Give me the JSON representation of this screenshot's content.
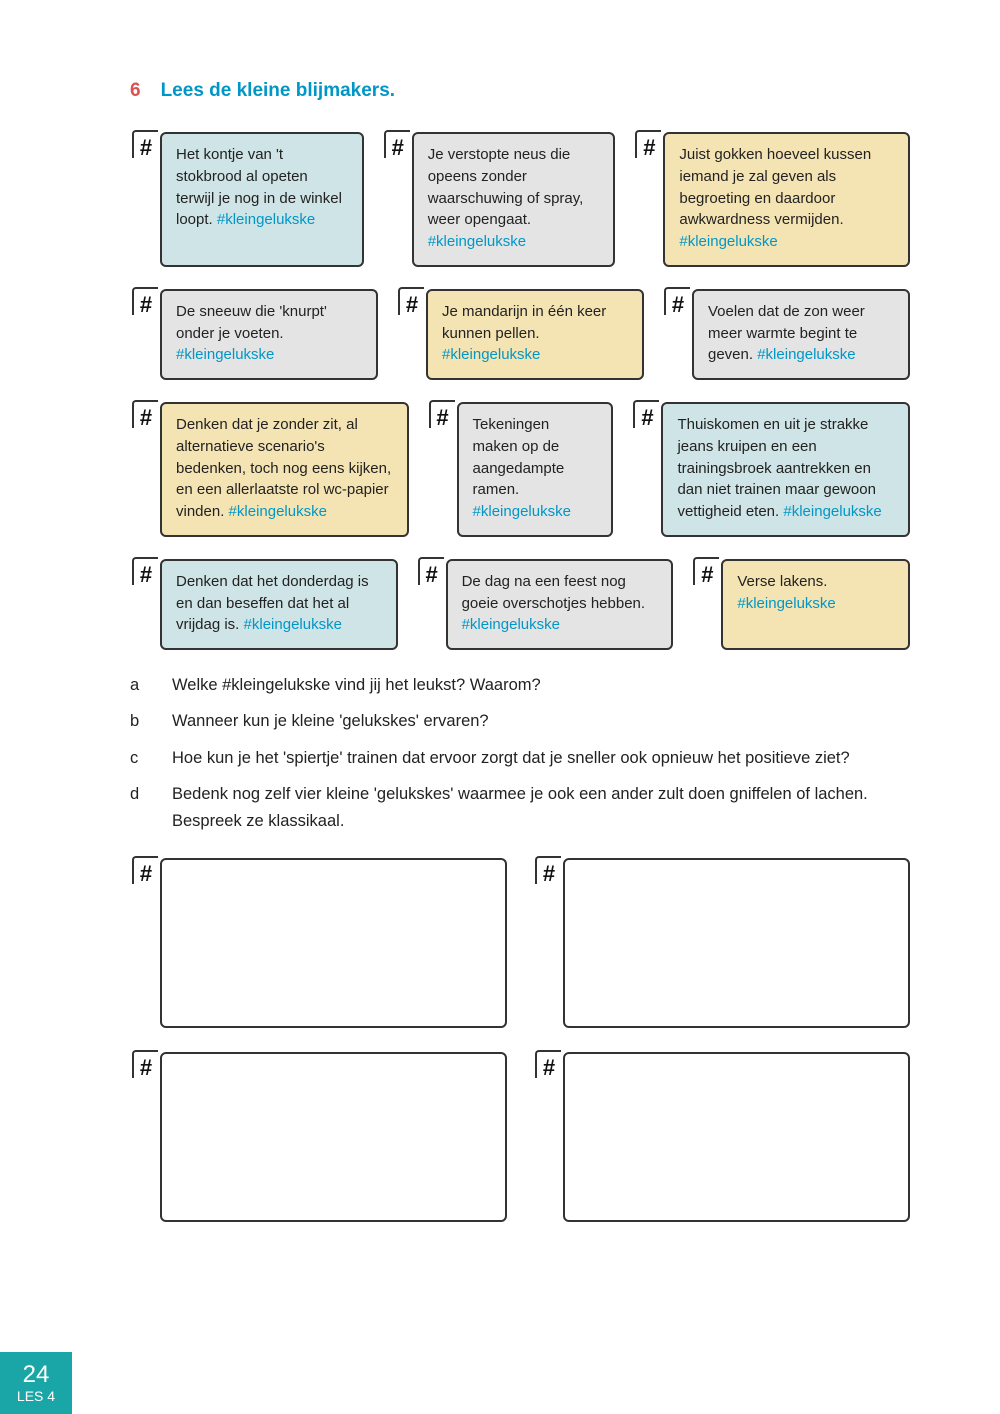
{
  "heading": {
    "num": "6",
    "title": "Lees de kleine blijmakers."
  },
  "hashtag": "#kleingelukske",
  "rows": [
    [
      {
        "text": "Het kontje van 't stokbrood al opeten terwijl je nog in de winkel loopt. ",
        "bg": "bg-blue"
      },
      {
        "text": "Je verstopte neus die opeens zonder waarschuwing of spray, weer opengaat. ",
        "bg": "bg-grey"
      },
      {
        "text": "Juist gokken hoeveel kussen iemand je zal geven als begroeting en daardoor awkwardness vermijden. ",
        "bg": "bg-yellow"
      }
    ],
    [
      {
        "text": "De sneeuw die 'knurpt' onder je voeten. ",
        "bg": "bg-grey"
      },
      {
        "text": "Je mandarijn in één keer kunnen pellen. ",
        "bg": "bg-yellow"
      },
      {
        "text": "Voelen dat de zon weer meer warmte begint te geven. ",
        "bg": "bg-grey"
      }
    ],
    [
      {
        "text": "Denken dat je zonder zit, al alternatieve scenario's bedenken, toch nog eens kijken, en een allerlaatste rol wc-papier vinden. ",
        "bg": "bg-yellow"
      },
      {
        "text": "Tekeningen maken op de aangedampte ramen. ",
        "bg": "bg-grey"
      },
      {
        "text": "Thuiskomen en uit je strakke jeans kruipen en een trainingsbroek aantrekken en dan niet trainen maar gewoon vettigheid eten. ",
        "bg": "bg-blue"
      }
    ],
    [
      {
        "text": "Denken dat het donderdag is en dan beseffen dat het al vrijdag is. ",
        "bg": "bg-blue"
      },
      {
        "text": "De dag na een feest nog goeie overschotjes hebben. ",
        "bg": "bg-grey"
      },
      {
        "text": "Verse lakens. ",
        "bg": "bg-yellow"
      }
    ]
  ],
  "row_flex": [
    [
      1,
      1,
      1.25
    ],
    [
      1,
      1,
      1
    ],
    [
      1.3,
      0.75,
      1.3
    ],
    [
      1.05,
      1,
      0.8
    ]
  ],
  "questions": [
    {
      "lbl": "a",
      "txt": "Welke #kleingelukske vind jij het leukst? Waarom?"
    },
    {
      "lbl": "b",
      "txt": "Wanneer kun je kleine 'gelukskes' ervaren?"
    },
    {
      "lbl": "c",
      "txt": "Hoe kun je het 'spiertje' trainen dat ervoor zorgt dat je sneller ook opnieuw het positieve ziet?"
    },
    {
      "lbl": "d",
      "txt": "Bedenk nog zelf vier kleine 'gelukskes' waarmee je ook een ander zult doen gniffelen of lachen. Bespreek ze klassikaal."
    }
  ],
  "footer": {
    "page": "24",
    "lesson": "LES 4"
  }
}
